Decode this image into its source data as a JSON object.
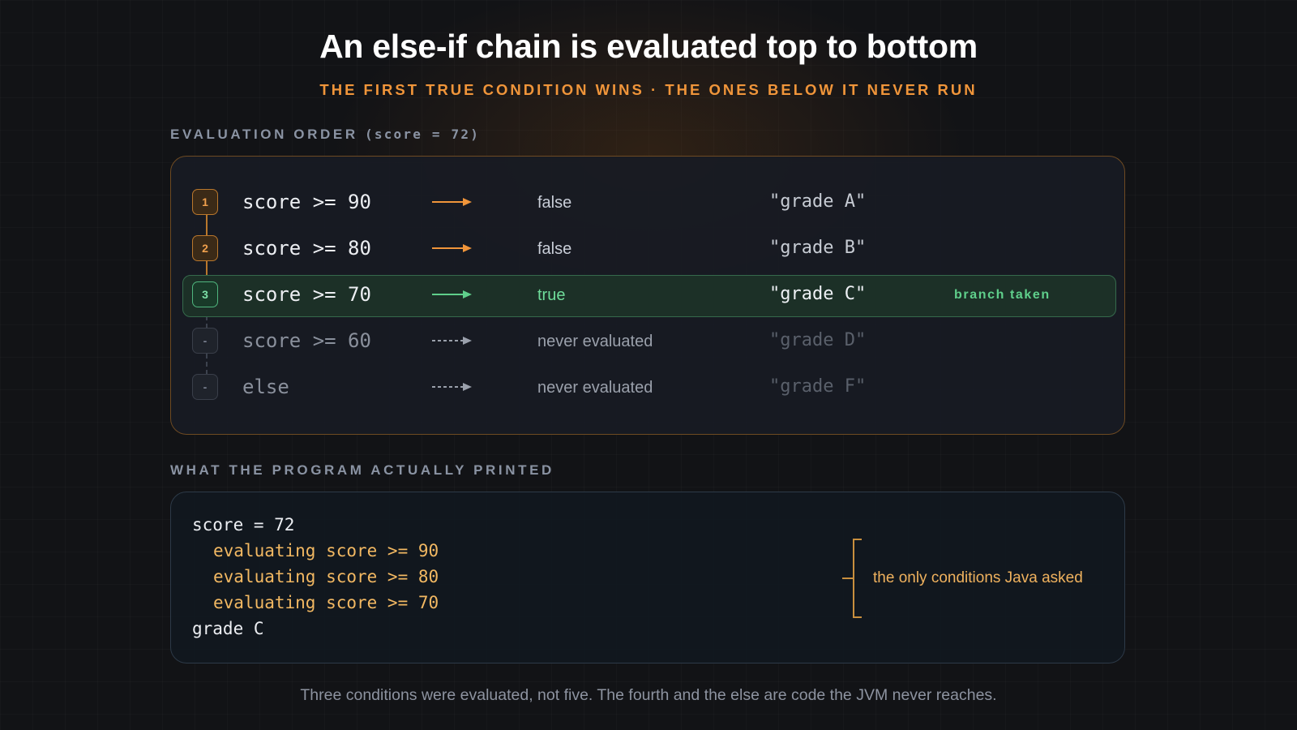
{
  "title": "An else-if chain is evaluated top to bottom",
  "subtitle": "THE FIRST TRUE CONDITION WINS · THE ONES BELOW IT NEVER RUN",
  "evaluation": {
    "section_label": "EVALUATION ORDER",
    "section_label_suffix": "(score = 72)",
    "rows": [
      {
        "badge": "1",
        "condition": "score >= 90",
        "result": "false",
        "value": "\"grade A\"",
        "state": "evaluated"
      },
      {
        "badge": "2",
        "condition": "score >= 80",
        "result": "false",
        "value": "\"grade B\"",
        "state": "evaluated"
      },
      {
        "badge": "3",
        "condition": "score >= 70",
        "result": "true",
        "value": "\"grade C\"",
        "state": "taken",
        "note": "branch taken"
      },
      {
        "badge": "-",
        "condition": "score >= 60",
        "result": "never evaluated",
        "value": "\"grade D\"",
        "state": "skipped"
      },
      {
        "badge": "-",
        "condition": "else",
        "result": "never evaluated",
        "value": "\"grade F\"",
        "state": "skipped"
      }
    ]
  },
  "output": {
    "section_label": "WHAT THE PROGRAM ACTUALLY PRINTED",
    "lines": [
      "score = 72",
      "evaluating score >= 90",
      "evaluating score >= 80",
      "evaluating score >= 70",
      "grade C"
    ],
    "bracket_note": "the only conditions Java asked"
  },
  "footnote": "Three conditions were evaluated, not five. The fourth and the else are code the JVM never reaches.",
  "colors": {
    "accent_orange": "#f0953a",
    "true_green": "#6fdc9a",
    "output_highlight": "#f2b862",
    "background": "#121316"
  }
}
